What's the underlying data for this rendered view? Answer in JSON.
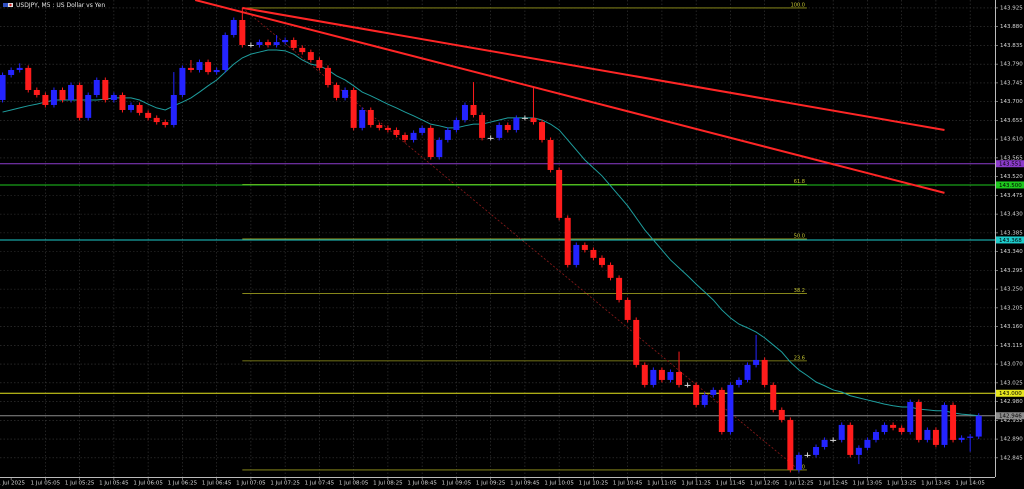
{
  "chart_data": {
    "type": "candlestick",
    "title": "USDJPY, M5 : US Dollar vs Yen",
    "open": [
      143.704,
      143.764,
      143.776,
      143.781,
      143.728,
      143.716,
      143.692,
      143.728,
      143.704,
      143.74,
      143.661,
      143.716,
      143.752,
      143.704,
      143.716,
      143.68,
      143.692,
      143.673,
      143.661,
      143.651,
      143.644,
      143.716,
      143.781,
      143.776,
      143.795,
      143.771,
      143.776,
      143.86,
      143.896,
      143.836,
      143.836,
      143.843,
      143.836,
      143.843,
      143.848,
      143.829,
      143.819,
      143.8,
      143.781,
      143.74,
      143.709,
      143.728,
      143.637,
      143.68,
      143.644,
      143.637,
      143.632,
      143.62,
      143.608,
      143.625,
      143.637,
      143.567,
      143.608,
      143.632,
      143.656,
      143.692,
      143.668,
      143.613,
      143.613,
      143.644,
      143.632,
      143.661,
      143.661,
      143.651,
      143.608,
      143.536,
      143.421,
      143.308,
      143.356,
      143.344,
      143.325,
      143.308,
      143.277,
      143.224,
      143.176,
      143.068,
      143.02,
      143.056,
      143.032,
      143.051,
      143.02,
      143.02,
      142.972,
      142.996,
      143.008,
      142.907,
      143.02,
      143.032,
      143.068,
      143.08,
      143.02,
      142.96,
      142.936,
      142.816,
      142.852,
      142.852,
      142.871,
      142.888,
      142.888,
      142.924,
      142.852,
      142.869,
      142.888,
      142.907,
      142.924,
      142.917,
      142.907,
      142.979,
      142.888,
      142.912,
      142.876,
      142.972,
      142.888,
      142.893,
      142.896
    ],
    "high": [
      143.77,
      143.782,
      143.792,
      143.787,
      143.734,
      143.722,
      143.734,
      143.734,
      143.746,
      143.746,
      143.722,
      143.758,
      143.758,
      143.722,
      143.722,
      143.698,
      143.698,
      143.679,
      143.667,
      143.657,
      143.771,
      143.787,
      143.8,
      143.801,
      143.801,
      143.782,
      143.866,
      143.902,
      143.925,
      143.842,
      143.849,
      143.849,
      143.86,
      143.854,
      143.854,
      143.835,
      143.825,
      143.806,
      143.787,
      143.746,
      143.734,
      143.734,
      143.686,
      143.686,
      143.65,
      143.643,
      143.638,
      143.626,
      143.631,
      143.643,
      143.643,
      143.614,
      143.638,
      143.662,
      143.698,
      143.747,
      143.674,
      143.619,
      143.65,
      143.65,
      143.667,
      143.667,
      143.733,
      143.657,
      143.614,
      143.542,
      143.427,
      143.362,
      143.362,
      143.35,
      143.331,
      143.314,
      143.283,
      143.23,
      143.182,
      143.074,
      143.062,
      143.062,
      143.057,
      143.1,
      143.026,
      143.026,
      143.002,
      143.014,
      143.014,
      143.026,
      143.038,
      143.074,
      143.14,
      143.086,
      143.026,
      142.966,
      142.942,
      142.858,
      142.858,
      142.877,
      142.894,
      142.894,
      142.93,
      142.93,
      142.875,
      142.894,
      142.913,
      142.93,
      142.93,
      142.923,
      142.985,
      142.985,
      142.918,
      142.918,
      142.978,
      142.978,
      142.899,
      142.902,
      142.952
    ],
    "low": [
      143.698,
      143.758,
      143.77,
      143.722,
      143.71,
      143.686,
      143.686,
      143.698,
      143.698,
      143.655,
      143.655,
      143.71,
      143.698,
      143.698,
      143.674,
      143.674,
      143.667,
      143.655,
      143.645,
      143.638,
      143.638,
      143.71,
      143.77,
      143.77,
      143.765,
      143.765,
      143.77,
      143.854,
      143.83,
      143.83,
      143.83,
      143.83,
      143.83,
      143.837,
      143.823,
      143.813,
      143.794,
      143.775,
      143.734,
      143.703,
      143.703,
      143.631,
      143.631,
      143.638,
      143.631,
      143.626,
      143.614,
      143.602,
      143.602,
      143.619,
      143.561,
      143.561,
      143.602,
      143.626,
      143.65,
      143.662,
      143.607,
      143.607,
      143.607,
      143.626,
      143.626,
      143.655,
      143.645,
      143.602,
      143.53,
      143.415,
      143.302,
      143.302,
      143.338,
      143.319,
      143.302,
      143.271,
      143.218,
      143.17,
      143.062,
      143.014,
      143.014,
      143.026,
      143.026,
      143.014,
      143.014,
      142.966,
      142.966,
      142.99,
      142.901,
      142.901,
      143.014,
      143.026,
      143.062,
      143.014,
      142.954,
      142.93,
      142.81,
      142.81,
      142.846,
      142.846,
      142.865,
      142.882,
      142.882,
      142.846,
      142.83,
      142.863,
      142.882,
      142.901,
      142.911,
      142.901,
      142.901,
      142.882,
      142.882,
      142.87,
      142.87,
      142.882,
      142.882,
      142.86,
      142.89
    ],
    "close": [
      143.764,
      143.776,
      143.781,
      143.728,
      143.716,
      143.692,
      143.728,
      143.704,
      143.74,
      143.661,
      143.716,
      143.752,
      143.704,
      143.716,
      143.68,
      143.692,
      143.673,
      143.661,
      143.651,
      143.644,
      143.716,
      143.781,
      143.776,
      143.795,
      143.771,
      143.776,
      143.86,
      143.896,
      143.836,
      143.836,
      143.843,
      143.836,
      143.843,
      143.848,
      143.829,
      143.819,
      143.8,
      143.781,
      143.74,
      143.709,
      143.728,
      143.637,
      143.68,
      143.644,
      143.637,
      143.632,
      143.62,
      143.608,
      143.625,
      143.637,
      143.567,
      143.608,
      143.632,
      143.656,
      143.692,
      143.668,
      143.613,
      143.613,
      143.644,
      143.632,
      143.661,
      143.661,
      143.651,
      143.608,
      143.536,
      143.421,
      143.308,
      143.356,
      143.344,
      143.325,
      143.308,
      143.277,
      143.224,
      143.176,
      143.068,
      143.02,
      143.056,
      143.032,
      143.051,
      143.02,
      143.02,
      142.972,
      142.996,
      143.008,
      142.907,
      143.02,
      143.032,
      143.068,
      143.08,
      143.02,
      142.96,
      142.936,
      142.816,
      142.852,
      142.852,
      142.871,
      142.888,
      142.888,
      142.924,
      142.852,
      142.869,
      142.888,
      142.907,
      142.924,
      142.917,
      142.907,
      142.979,
      142.888,
      142.912,
      142.876,
      142.972,
      142.888,
      142.893,
      142.896,
      142.946
    ],
    "up_color": "#2424ff",
    "down_color": "#ff1c1c",
    "doji_color": "#d0d0d0",
    "ma": {
      "color": "#1e9e9e",
      "values": [
        143.675,
        143.68,
        143.685,
        143.69,
        143.694,
        143.699,
        143.704,
        143.704,
        143.704,
        143.704,
        143.704,
        143.704,
        143.706,
        143.709,
        143.709,
        143.709,
        143.704,
        143.694,
        143.685,
        143.68,
        143.69,
        143.699,
        143.709,
        143.723,
        143.738,
        143.752,
        143.771,
        143.79,
        143.805,
        143.814,
        143.819,
        143.824,
        143.824,
        143.822,
        143.814,
        143.8,
        143.79,
        143.786,
        143.776,
        143.762,
        143.752,
        143.738,
        143.723,
        143.714,
        143.704,
        143.694,
        143.685,
        143.675,
        143.666,
        143.656,
        143.646,
        143.642,
        143.637,
        143.637,
        143.642,
        143.646,
        143.646,
        143.651,
        143.656,
        143.661,
        143.661,
        143.661,
        143.661,
        143.656,
        143.646,
        143.632,
        143.608,
        143.584,
        143.56,
        143.541,
        143.522,
        143.498,
        143.474,
        143.45,
        143.421,
        143.392,
        143.368,
        143.344,
        143.32,
        143.301,
        143.282,
        143.262,
        143.243,
        143.224,
        143.2,
        143.181,
        143.166,
        143.157,
        143.147,
        143.133,
        143.116,
        143.099,
        143.075,
        143.056,
        143.042,
        143.027,
        143.018,
        143.008,
        143.003,
        142.994,
        142.989,
        142.984,
        142.979,
        142.974,
        142.97,
        142.967,
        142.967,
        142.962,
        142.96,
        142.958,
        142.958,
        142.953,
        142.95,
        142.948,
        142.946
      ]
    },
    "xlim": [
      -0.3,
      115.9
    ],
    "xticks": [
      {
        "value": 1,
        "label": "1 Jul 2025"
      },
      {
        "value": 5,
        "label": "1 Jul 05:05"
      },
      {
        "value": 9,
        "label": "1 Jul 05:25"
      },
      {
        "value": 13,
        "label": "1 Jul 05:45"
      },
      {
        "value": 17,
        "label": "1 Jul 06:05"
      },
      {
        "value": 21,
        "label": "1 Jul 06:25"
      },
      {
        "value": 25,
        "label": "1 Jul 06:45"
      },
      {
        "value": 29,
        "label": "1 Jul 07:05"
      },
      {
        "value": 33,
        "label": "1 Jul 07:25"
      },
      {
        "value": 37,
        "label": "1 Jul 07:45"
      },
      {
        "value": 41,
        "label": "1 Jul 08:05"
      },
      {
        "value": 45,
        "label": "1 Jul 08:25"
      },
      {
        "value": 49,
        "label": "1 Jul 08:45"
      },
      {
        "value": 53,
        "label": "1 Jul 09:05"
      },
      {
        "value": 57,
        "label": "1 Jul 09:25"
      },
      {
        "value": 61,
        "label": "1 Jul 09:45"
      },
      {
        "value": 65,
        "label": "1 Jul 10:05"
      },
      {
        "value": 69,
        "label": "1 Jul 10:25"
      },
      {
        "value": 73,
        "label": "1 Jul 10:45"
      },
      {
        "value": 77,
        "label": "1 Jul 11:05"
      },
      {
        "value": 81,
        "label": "1 Jul 11:25"
      },
      {
        "value": 85,
        "label": "1 Jul 11:45"
      },
      {
        "value": 89,
        "label": "1 Jul 12:05"
      },
      {
        "value": 93,
        "label": "1 Jul 12:25"
      },
      {
        "value": 97,
        "label": "1 Jul 12:45"
      },
      {
        "value": 101,
        "label": "1 Jul 13:05"
      },
      {
        "value": 105,
        "label": "1 Jul 13:25"
      },
      {
        "value": 109,
        "label": "1 Jul 13:45"
      },
      {
        "value": 113,
        "label": "1 Jul 14:05"
      }
    ],
    "ylim": [
      142.799,
      143.944
    ],
    "yticks": [
      143.925,
      {
        "value": 143.88,
        "label": "143.880"
      },
      143.835,
      {
        "value": 143.79,
        "label": "143.790"
      },
      143.745,
      {
        "value": 143.7,
        "label": "143.700"
      },
      143.655,
      {
        "value": 143.61,
        "label": "143.610"
      },
      143.565,
      {
        "value": 143.52,
        "label": "143.520"
      },
      143.475,
      {
        "value": 143.43,
        "label": "143.430"
      },
      143.385,
      {
        "value": 143.34,
        "label": "143.340"
      },
      143.295,
      {
        "value": 143.25,
        "label": "143.250"
      },
      143.205,
      {
        "value": 143.16,
        "label": "143.160"
      },
      143.115,
      {
        "value": 143.07,
        "label": "143.070"
      },
      143.025,
      {
        "value": 142.98,
        "label": "142.980"
      },
      142.935,
      {
        "value": 142.89,
        "label": "142.890"
      },
      142.845
    ],
    "grid": true,
    "levels": [
      {
        "value": 143.551,
        "label": "143.551",
        "color": "#8c3ccc"
      },
      {
        "value": 143.5,
        "label": "143.500",
        "color": "#1ec81e"
      },
      {
        "value": 143.368,
        "label": "143.368",
        "color": "#1ecccc"
      },
      {
        "value": 143.0,
        "label": "143.000",
        "color": "#e6e61e"
      },
      {
        "value": 142.946,
        "label": "142.946",
        "color": "#8c8c8c"
      }
    ],
    "fib": {
      "start": [
        28,
        143.925
      ],
      "end": [
        93,
        142.816
      ],
      "color": "#9a9a1e",
      "line_color": "#8c1a1a",
      "levels": [
        {
          "value": 100,
          "label": "100.0"
        },
        61.8,
        {
          "value": 50,
          "label": "50.0"
        },
        38.2,
        23.6,
        {
          "value": 0,
          "label": "0.0"
        }
      ]
    },
    "trendlines": [
      {
        "color": "#ff2626",
        "points": [
          [
            28,
            143.925
          ],
          [
            110,
            143.632
          ]
        ]
      },
      {
        "color": "#ff2626",
        "points": [
          [
            22.5,
            143.944
          ],
          [
            110,
            143.481
          ]
        ]
      }
    ]
  }
}
